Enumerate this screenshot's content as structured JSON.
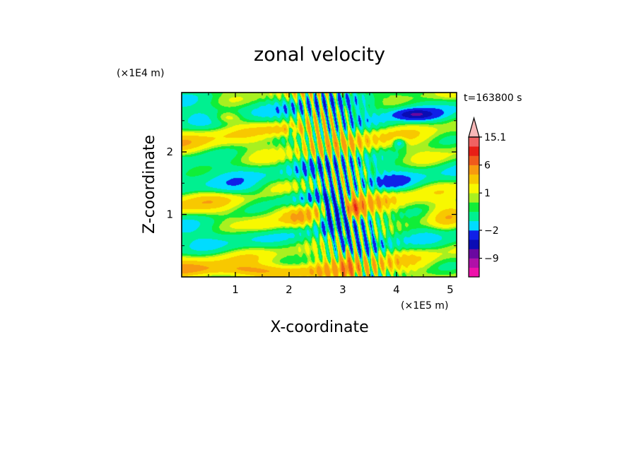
{
  "chart_data": {
    "type": "heatmap",
    "title": "zonal velocity",
    "xlabel": "X-coordinate",
    "ylabel": "Z-coordinate",
    "x_unit": "(×1E5 m)",
    "y_unit": "(×1E4 m)",
    "time_label": "t=163800 s",
    "xlim": [
      0,
      5.12
    ],
    "ylim": [
      0,
      2.95
    ],
    "x_ticks": [
      "1",
      "2",
      "3",
      "4",
      "5"
    ],
    "y_ticks": [
      "1",
      "2"
    ],
    "colorbar": {
      "tick_labels": [
        "15.1",
        "6",
        "1",
        "−2",
        "−9"
      ],
      "levels": [
        {
          "from": -15,
          "to": -12,
          "color": "#ee10aa"
        },
        {
          "from": -12,
          "to": -9,
          "color": "#b010a8"
        },
        {
          "from": -9,
          "to": -6,
          "color": "#6a08a0"
        },
        {
          "from": -6,
          "to": -4,
          "color": "#0a0cb4"
        },
        {
          "from": -4,
          "to": -2,
          "color": "#1020e8"
        },
        {
          "from": -2,
          "to": -1,
          "color": "#00dcff"
        },
        {
          "from": -1,
          "to": 0,
          "color": "#00f090"
        },
        {
          "from": 0,
          "to": 0.5,
          "color": "#10ee38"
        },
        {
          "from": 0.5,
          "to": 1,
          "color": "#a8f020"
        },
        {
          "from": 1,
          "to": 2,
          "color": "#f8f800"
        },
        {
          "from": 2,
          "to": 3,
          "color": "#f8c800"
        },
        {
          "from": 3,
          "to": 6,
          "color": "#f89a10"
        },
        {
          "from": 6,
          "to": 9,
          "color": "#f05a1c"
        },
        {
          "from": 9,
          "to": 12,
          "color": "#e81e16"
        },
        {
          "from": 12,
          "to": 15.1,
          "color": "#f06262"
        },
        {
          "from": 15.1,
          "to": 18,
          "color": "#f8b8b8"
        }
      ]
    },
    "features": [
      {
        "x": 2.95,
        "z": 1.08,
        "value": -5,
        "sx": 0.14,
        "sz": 0.16
      },
      {
        "x": 2.72,
        "z": 1.05,
        "value": -4,
        "sx": 0.08,
        "sz": 0.2
      },
      {
        "x": 3.22,
        "z": 1.08,
        "value": 5,
        "sx": 0.16,
        "sz": 0.16
      },
      {
        "x": 4.35,
        "z": 2.6,
        "value": -5,
        "sx": 0.35,
        "sz": 0.08
      },
      {
        "x": 4.05,
        "z": 2.15,
        "value": -3,
        "sx": 0.12,
        "sz": 0.08
      },
      {
        "x": 2.05,
        "z": 2.35,
        "value": -3,
        "sx": 0.06,
        "sz": 0.06
      },
      {
        "x": 2.03,
        "z": 2.35,
        "value": 2.2,
        "sx": 0.5,
        "sz": 0.1
      },
      {
        "x": 0.85,
        "z": 2.55,
        "value": 2.2,
        "sx": 0.3,
        "sz": 0.1
      },
      {
        "x": 2.35,
        "z": 1.25,
        "value": -2.2,
        "sx": 0.6,
        "sz": 0.12
      },
      {
        "x": 1.0,
        "z": 1.4,
        "value": -1.5,
        "sx": 0.6,
        "sz": 0.12
      },
      {
        "x": 3.9,
        "z": 1.5,
        "value": -1.5,
        "sx": 0.35,
        "sz": 0.12
      },
      {
        "x": 1.5,
        "z": 0.1,
        "value": 2.5,
        "sx": 1.2,
        "sz": 0.1
      },
      {
        "x": 3.1,
        "z": 0.2,
        "value": 3,
        "sx": 0.15,
        "sz": 0.25
      },
      {
        "x": 4.9,
        "z": 0.9,
        "value": 1.5,
        "sx": 0.3,
        "sz": 0.3
      },
      {
        "x": 3.05,
        "z": 0.55,
        "value": -3,
        "sx": 0.05,
        "sz": 0.12
      },
      {
        "x": 2.2,
        "z": 0.9,
        "value": 1.8,
        "sx": 0.3,
        "sz": 0.15
      },
      {
        "x": 1.6,
        "z": 0.8,
        "value": 1.5,
        "sx": 0.4,
        "sz": 0.15
      }
    ]
  }
}
